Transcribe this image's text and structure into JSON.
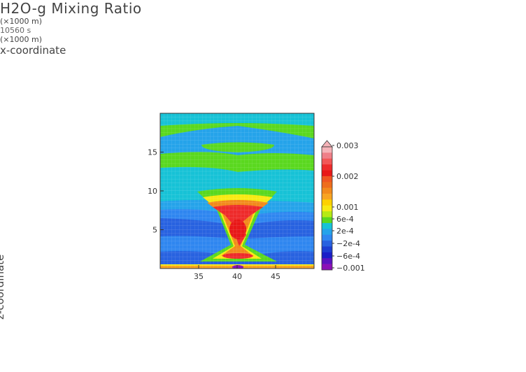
{
  "chart_data": {
    "type": "heatmap",
    "title": "H2O-g Mixing Ratio",
    "time_label": "10560 s",
    "xlabel": "x-coordinate",
    "ylabel": "z-coordinate",
    "x_unit": "(×1000 m)",
    "y_unit": "(×1000 m)",
    "xlim": [
      30,
      50
    ],
    "ylim": [
      0,
      20
    ],
    "x_ticks": [
      35,
      40,
      45
    ],
    "y_ticks": [
      5,
      10,
      15
    ],
    "grid": true,
    "colorbar": {
      "position": "right",
      "labels": [
        {
          "text": "0.003",
          "value": 0.003
        },
        {
          "text": "0.002",
          "value": 0.002
        },
        {
          "text": "0.001",
          "value": 0.001
        },
        {
          "text": "6e-4",
          "value": 0.0006
        },
        {
          "text": "2e-4",
          "value": 0.0002
        },
        {
          "text": "−2e-4",
          "value": -0.0002
        },
        {
          "text": "−6e-4",
          "value": -0.0006
        },
        {
          "text": "−0.001",
          "value": -0.001
        }
      ],
      "colors": [
        "#f5b3b8",
        "#ef7f88",
        "#f25757",
        "#ee2b2b",
        "#e81818",
        "#ef5521",
        "#ee6d1c",
        "#f28a1c",
        "#f8a421",
        "#fdd100",
        "#f7ea12",
        "#b6ea14",
        "#5ad81f",
        "#17c2d6",
        "#25a3ea",
        "#2f86f0",
        "#2862e0",
        "#1d3ed2",
        "#1a1ec8",
        "#5a13c0",
        "#8b10b6"
      ],
      "extends_max": true
    }
  }
}
